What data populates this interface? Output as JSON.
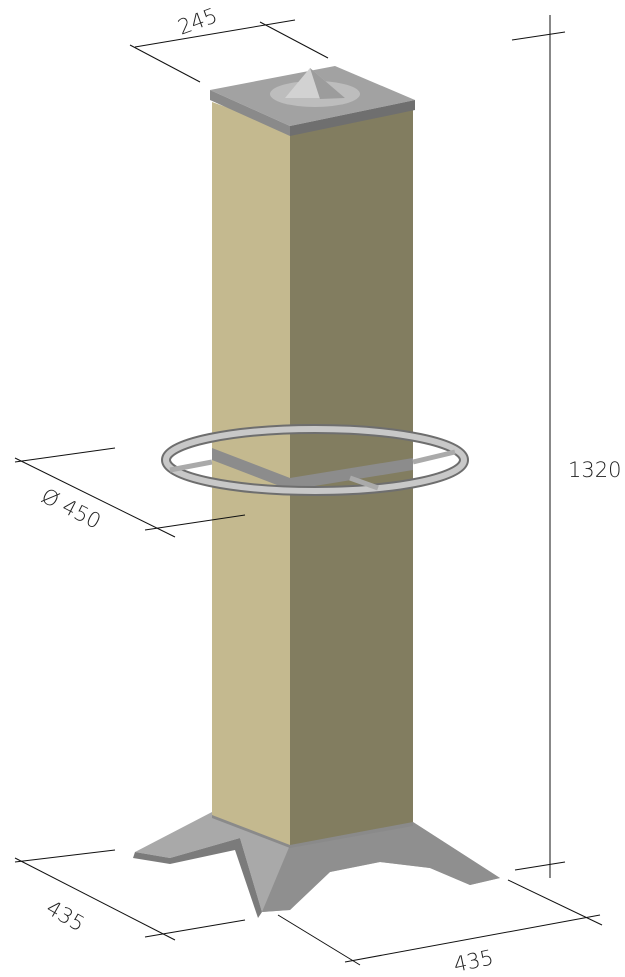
{
  "dimensions": {
    "top_width": "245",
    "ring_diameter": "Ø 450",
    "height": "1320",
    "base_depth": "435",
    "base_width": "435"
  }
}
